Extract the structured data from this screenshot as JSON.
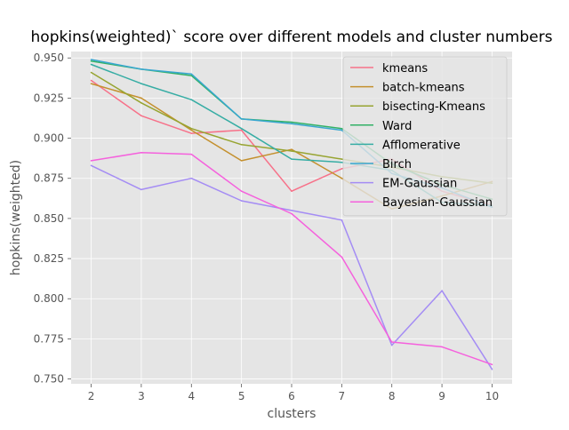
{
  "chart_data": {
    "type": "line",
    "title": "hopkins(weighted)` score over different models and cluster numbers",
    "xlabel": "clusters",
    "ylabel": "hopkins(weighted)",
    "x": [
      2,
      3,
      4,
      5,
      6,
      7,
      8,
      9,
      10
    ],
    "xlim": [
      1.6,
      10.4
    ],
    "ylim": [
      0.747,
      0.954
    ],
    "xticks": [
      "2",
      "3",
      "4",
      "5",
      "6",
      "7",
      "8",
      "9",
      "10"
    ],
    "yticks": [
      "0.750",
      "0.775",
      "0.800",
      "0.825",
      "0.850",
      "0.875",
      "0.900",
      "0.925",
      "0.950"
    ],
    "grid": true,
    "legend_position": "top-right",
    "series": [
      {
        "name": "kmeans",
        "color": "#f77189",
        "values": [
          0.936,
          0.914,
          0.903,
          0.905,
          0.867,
          0.881,
          0.887,
          0.867,
          0.858
        ]
      },
      {
        "name": "batch-kmeans",
        "color": "#c4902e",
        "values": [
          0.934,
          0.925,
          0.905,
          0.886,
          0.893,
          0.875,
          0.856,
          0.864,
          0.873
        ]
      },
      {
        "name": "bisecting-Kmeans",
        "color": "#97a431",
        "values": [
          0.941,
          0.922,
          0.906,
          0.896,
          0.892,
          0.887,
          0.882,
          0.876,
          0.872
        ]
      },
      {
        "name": "Ward",
        "color": "#32b166",
        "values": [
          0.948,
          0.943,
          0.939,
          0.912,
          0.91,
          0.906,
          0.884,
          0.871,
          0.862
        ]
      },
      {
        "name": "Afflomerative",
        "color": "#36ada4",
        "values": [
          0.946,
          0.934,
          0.924,
          0.906,
          0.887,
          0.885,
          0.88,
          0.86,
          0.858
        ]
      },
      {
        "name": "Birch",
        "color": "#39a7d0",
        "values": [
          0.949,
          0.943,
          0.94,
          0.912,
          0.909,
          0.905,
          0.878,
          0.869,
          0.857
        ]
      },
      {
        "name": "EM-Gaussian",
        "color": "#a48cf4",
        "values": [
          0.883,
          0.868,
          0.875,
          0.861,
          0.855,
          0.849,
          0.771,
          0.805,
          0.756
        ]
      },
      {
        "name": "Bayesian-Gaussian",
        "color": "#f561dd",
        "values": [
          0.886,
          0.891,
          0.89,
          0.867,
          0.853,
          0.826,
          0.773,
          0.77,
          0.759
        ]
      }
    ]
  }
}
